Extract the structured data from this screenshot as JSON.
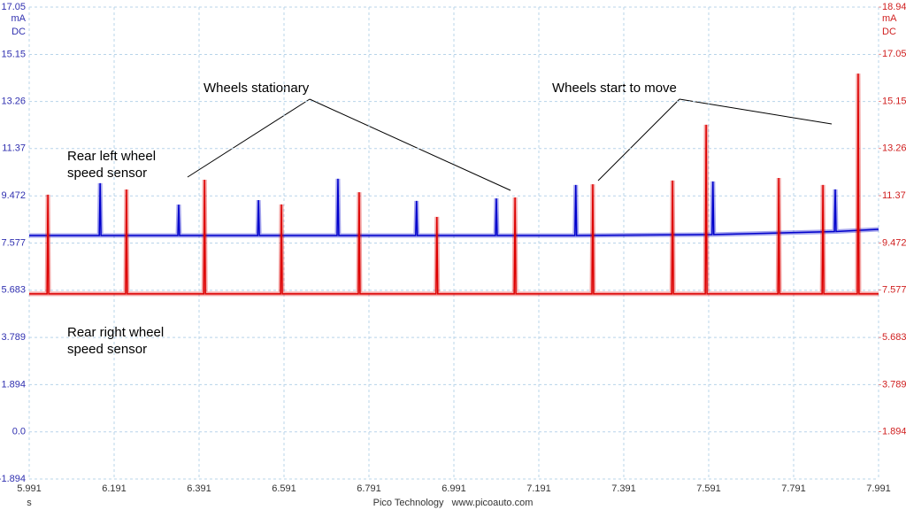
{
  "chart_data": {
    "type": "line",
    "xlim": [
      5.991,
      7.991
    ],
    "xticks": [
      5.991,
      6.191,
      6.391,
      6.591,
      6.791,
      6.991,
      7.191,
      7.391,
      7.591,
      7.791,
      7.991
    ],
    "ylim": [
      -1.894,
      17.05
    ],
    "yticks": [
      -1.894,
      {
        "value": 0,
        "label": "0.0"
      },
      1.894,
      3.789,
      5.683,
      7.577,
      9.472,
      11.37,
      13.26,
      15.15,
      17.05
    ],
    "y2lim": [
      0,
      18.94
    ],
    "y2ticks": [
      1.894,
      3.789,
      5.683,
      7.577,
      9.472,
      11.37,
      13.26,
      15.15,
      17.05,
      18.94
    ],
    "ylabel": [
      "mA",
      "DC"
    ],
    "y2label": [
      "mA",
      "DC"
    ],
    "xlabel": "s",
    "footer": "Pico Technology   www.picoauto.com",
    "grid": true,
    "annotations": [
      "Wheels stationary",
      "Wheels start to move",
      "Rear left wheel",
      "speed sensor",
      "Rear right wheel",
      "speed sensor"
    ],
    "series": [
      {
        "color": "#0000cc",
        "axis": "y",
        "x": [
          5.991,
          6.156,
          6.158,
          6.16,
          6.341,
          6.343,
          6.345,
          6.529,
          6.531,
          6.533,
          6.716,
          6.718,
          6.72,
          6.901,
          6.903,
          6.905,
          7.089,
          7.091,
          7.093,
          7.276,
          7.278,
          7.28,
          7.599,
          7.601,
          7.603,
          7.887,
          7.889,
          7.891,
          7.991
        ],
        "values": [
          7.88,
          7.88,
          9.98,
          7.88,
          7.88,
          9.12,
          7.88,
          7.88,
          9.3,
          7.88,
          7.88,
          10.16,
          7.88,
          7.88,
          9.27,
          7.88,
          7.88,
          9.37,
          7.88,
          7.88,
          9.91,
          7.88,
          7.92,
          10.05,
          7.92,
          8.04,
          9.73,
          8.04,
          8.13
        ]
      },
      {
        "color": "#dd0000",
        "axis": "y2",
        "x": [
          5.991,
          6.033,
          6.035,
          6.037,
          6.218,
          6.22,
          6.222,
          6.402,
          6.404,
          6.406,
          6.583,
          6.585,
          6.587,
          6.766,
          6.768,
          6.77,
          6.949,
          6.951,
          6.953,
          7.133,
          7.135,
          7.137,
          7.316,
          7.318,
          7.32,
          7.504,
          7.506,
          7.508,
          7.583,
          7.585,
          7.587,
          7.754,
          7.756,
          7.758,
          7.858,
          7.86,
          7.862,
          7.941,
          7.943,
          7.945,
          7.991
        ],
        "values": [
          7.43,
          7.43,
          11.41,
          7.43,
          7.43,
          11.62,
          7.43,
          7.43,
          12.01,
          7.43,
          7.43,
          11.02,
          7.43,
          7.43,
          11.51,
          7.43,
          7.43,
          10.52,
          7.43,
          7.43,
          11.3,
          7.43,
          7.43,
          11.83,
          7.43,
          7.43,
          11.98,
          7.43,
          7.43,
          14.22,
          7.43,
          7.43,
          12.08,
          7.43,
          7.43,
          11.8,
          7.43,
          7.43,
          16.27,
          7.43,
          7.43
        ]
      }
    ]
  }
}
